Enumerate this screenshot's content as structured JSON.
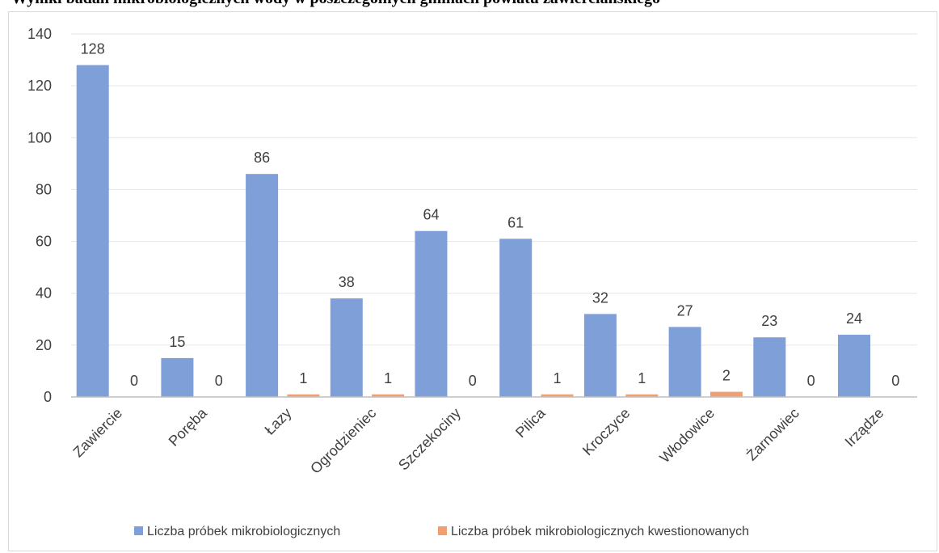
{
  "page_heading": "Wyniki badań mikrobiologicznych wody w poszczególnych gminach powiatu zawierciańskiego",
  "colors": {
    "series_1": "#7f9fd8",
    "series_2": "#f0a070",
    "grid": "#e6e6e6",
    "axis": "#bfbfbf"
  },
  "chart_data": {
    "type": "bar",
    "categories": [
      "Zawiercie",
      "Poręba",
      "Łazy",
      "Ogrodzieniec",
      "Szczekociny",
      "Pilica",
      "Kroczyce",
      "Włodowice",
      "Żarnowiec",
      "Irządze"
    ],
    "series": [
      {
        "name": "Liczba próbek mikrobiologicznych",
        "values": [
          128,
          15,
          86,
          38,
          64,
          61,
          32,
          27,
          23,
          24
        ]
      },
      {
        "name": "Liczba próbek mikrobiologicznych kwestionowanych",
        "values": [
          0,
          0,
          1,
          1,
          0,
          1,
          1,
          2,
          0,
          0
        ]
      }
    ],
    "ylim": [
      0,
      140
    ],
    "yticks": [
      0,
      20,
      40,
      60,
      80,
      100,
      120,
      140
    ],
    "grid": true,
    "legend_position": "bottom",
    "xlabel": "",
    "ylabel": ""
  }
}
